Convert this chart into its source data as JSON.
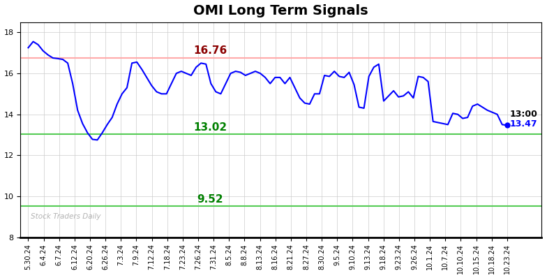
{
  "title": "OMI Long Term Signals",
  "watermark": "Stock Traders Daily",
  "hline_red": 16.76,
  "hline_green_upper": 13.02,
  "hline_green_lower": 9.52,
  "hline_red_color": "#ffaaaa",
  "hline_green_color": "#55cc55",
  "last_label_time": "13:00",
  "last_value": "13.47",
  "ylim": [
    8,
    18.5
  ],
  "x_labels": [
    "5.30.24",
    "6.4.24",
    "6.7.24",
    "6.12.24",
    "6.20.24",
    "6.26.24",
    "7.3.24",
    "7.9.24",
    "7.12.24",
    "7.18.24",
    "7.23.24",
    "7.26.24",
    "7.31.24",
    "8.5.24",
    "8.8.24",
    "8.13.24",
    "8.16.24",
    "8.21.24",
    "8.27.24",
    "8.30.24",
    "9.5.24",
    "9.10.24",
    "9.13.24",
    "9.18.24",
    "9.23.24",
    "9.26.24",
    "10.1.24",
    "10.7.24",
    "10.10.24",
    "10.15.24",
    "10.18.24",
    "10.23.24"
  ],
  "raw_y": [
    17.25,
    17.55,
    17.4,
    17.1,
    16.9,
    16.75,
    16.72,
    16.68,
    16.5,
    15.5,
    14.2,
    13.55,
    13.1,
    12.78,
    12.75,
    13.1,
    13.5,
    13.85,
    14.5,
    15.0,
    15.3,
    16.5,
    16.55,
    16.2,
    15.8,
    15.4,
    15.1,
    15.0,
    15.0,
    15.5,
    16.0,
    16.1,
    16.0,
    15.9,
    16.3,
    16.5,
    16.45,
    15.5,
    15.1,
    15.0,
    15.5,
    16.0,
    16.1,
    16.05,
    15.9,
    16.0,
    16.1,
    16.0,
    15.8,
    15.5,
    15.8,
    15.8,
    15.5,
    15.8,
    15.3,
    14.8,
    14.55,
    14.5,
    15.0,
    15.0,
    15.9,
    15.85,
    16.1,
    15.85,
    15.8,
    16.05,
    15.45,
    14.35,
    14.3,
    15.85,
    16.3,
    16.45,
    14.65,
    14.9,
    15.15,
    14.85,
    14.9,
    15.1,
    14.8,
    15.85,
    15.8,
    15.6,
    13.65,
    13.6,
    13.55,
    13.5,
    14.05,
    14.0,
    13.8,
    13.85,
    14.4,
    14.5,
    14.35,
    14.2,
    14.1,
    14.0,
    13.5,
    13.47
  ],
  "line_color": "blue",
  "dot_color": "blue",
  "title_fontsize": 14,
  "tick_fontsize": 7,
  "annotation_fontsize": 11,
  "last_annotation_fontsize": 9,
  "background_color": "#ffffff",
  "grid_color": "#cccccc",
  "yticks": [
    8,
    10,
    12,
    14,
    16,
    18
  ]
}
